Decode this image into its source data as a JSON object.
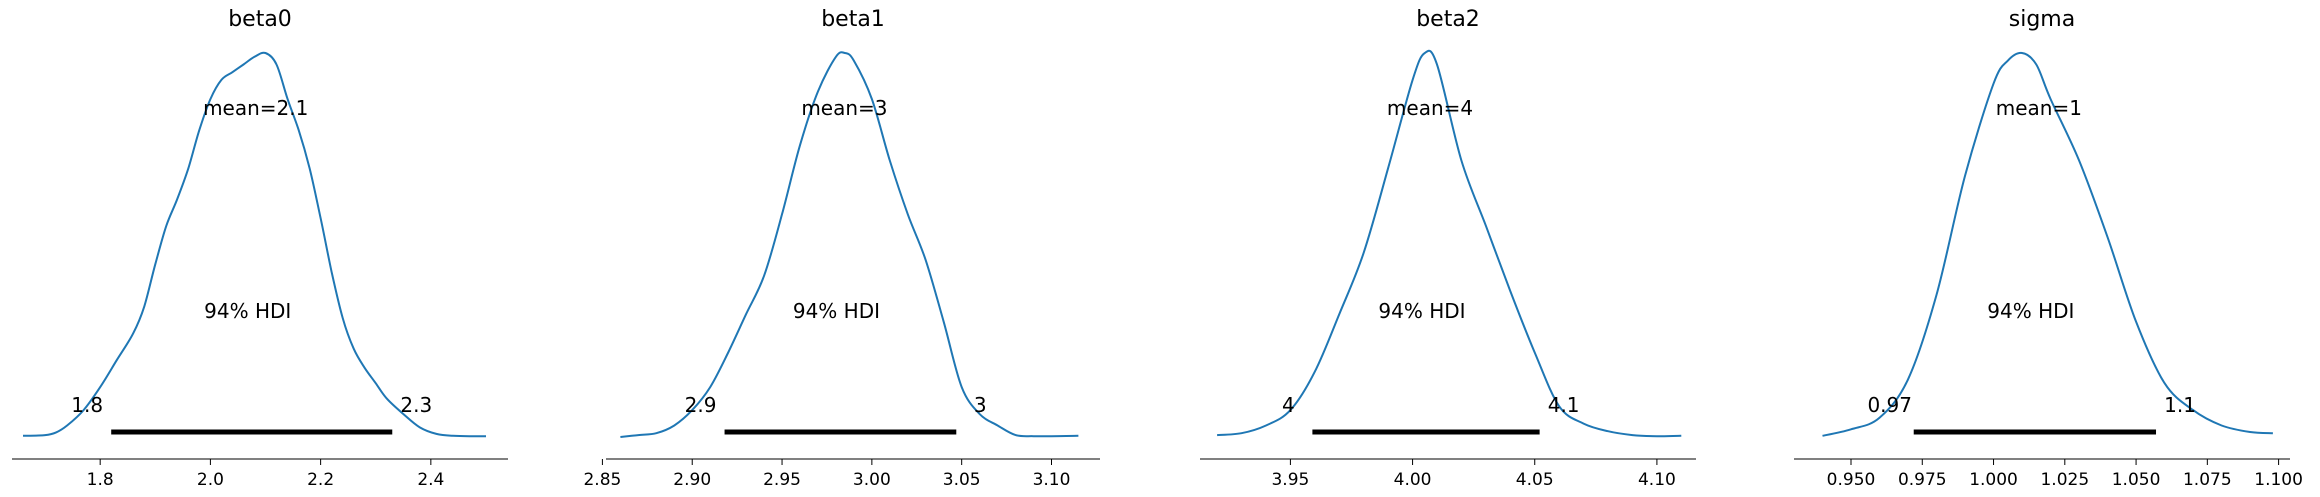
{
  "chart_data": [
    {
      "type": "area",
      "title": "beta0",
      "mean_label": "mean=2.1",
      "hdi_label": "94% HDI",
      "hdi": {
        "low": 1.82,
        "high": 2.33,
        "low_label": "1.8",
        "high_label": "2.3"
      },
      "xlim": [
        1.64,
        2.54
      ],
      "xticks": [
        1.8,
        2.0,
        2.2,
        2.4
      ],
      "xtick_labels": [
        "1.8",
        "2.0",
        "2.2",
        "2.4"
      ],
      "color": "#1f77b4",
      "density": {
        "x": [
          1.66,
          1.7,
          1.72,
          1.74,
          1.77,
          1.8,
          1.83,
          1.86,
          1.88,
          1.9,
          1.92,
          1.94,
          1.96,
          1.98,
          2.0,
          2.02,
          2.04,
          2.06,
          2.08,
          2.1,
          2.12,
          2.14,
          2.16,
          2.18,
          2.2,
          2.22,
          2.24,
          2.26,
          2.28,
          2.3,
          2.32,
          2.35,
          2.38,
          2.41,
          2.44,
          2.47,
          2.5
        ],
        "y": [
          0.003,
          0.005,
          0.012,
          0.03,
          0.07,
          0.13,
          0.2,
          0.27,
          0.34,
          0.45,
          0.55,
          0.62,
          0.7,
          0.8,
          0.88,
          0.93,
          0.95,
          0.97,
          0.99,
          1.0,
          0.97,
          0.88,
          0.8,
          0.7,
          0.57,
          0.43,
          0.31,
          0.23,
          0.18,
          0.14,
          0.1,
          0.06,
          0.025,
          0.008,
          0.003,
          0.002,
          0.002
        ]
      }
    },
    {
      "type": "area",
      "title": "beta1",
      "mean_label": "mean=3",
      "hdi_label": "94% HDI",
      "hdi": {
        "low": 2.918,
        "high": 3.047,
        "low_label": "2.9",
        "high_label": "3"
      },
      "xlim": [
        2.852,
        3.127
      ],
      "xticks": [
        2.85,
        2.9,
        2.95,
        3.0,
        3.05,
        3.1
      ],
      "xtick_labels": [
        "2.85",
        "2.90",
        "2.95",
        "3.00",
        "3.05",
        "3.10"
      ],
      "color": "#1f77b4",
      "density": {
        "x": [
          2.86,
          2.87,
          2.88,
          2.89,
          2.9,
          2.91,
          2.92,
          2.93,
          2.94,
          2.95,
          2.96,
          2.97,
          2.98,
          2.985,
          2.99,
          3.0,
          3.01,
          3.02,
          3.03,
          3.04,
          3.05,
          3.06,
          3.07,
          3.08,
          3.09,
          3.1,
          3.115
        ],
        "y": [
          0.0,
          0.005,
          0.01,
          0.03,
          0.07,
          0.13,
          0.22,
          0.32,
          0.42,
          0.58,
          0.76,
          0.9,
          0.99,
          1.0,
          0.98,
          0.88,
          0.72,
          0.58,
          0.46,
          0.3,
          0.13,
          0.06,
          0.03,
          0.005,
          0.002,
          0.002,
          0.003
        ]
      }
    },
    {
      "type": "area",
      "title": "beta2",
      "mean_label": "mean=4",
      "hdi_label": "94% HDI",
      "hdi": {
        "low": 3.959,
        "high": 4.052,
        "low_label": "4",
        "high_label": "4.1"
      },
      "xlim": [
        3.913,
        4.116
      ],
      "xticks": [
        3.95,
        4.0,
        4.05,
        4.1
      ],
      "xtick_labels": [
        "3.95",
        "4.00",
        "4.05",
        "4.10"
      ],
      "color": "#1f77b4",
      "density": {
        "x": [
          3.92,
          3.93,
          3.94,
          3.95,
          3.96,
          3.97,
          3.98,
          3.99,
          4.0,
          4.005,
          4.01,
          4.02,
          4.03,
          4.04,
          4.05,
          4.06,
          4.07,
          4.08,
          4.09,
          4.1,
          4.11
        ],
        "y": [
          0.005,
          0.01,
          0.03,
          0.07,
          0.17,
          0.32,
          0.48,
          0.7,
          0.93,
          1.0,
          0.97,
          0.72,
          0.55,
          0.38,
          0.22,
          0.08,
          0.035,
          0.015,
          0.005,
          0.002,
          0.003
        ]
      }
    },
    {
      "type": "area",
      "title": "sigma",
      "mean_label": "mean=1",
      "hdi_label": "94% HDI",
      "hdi": {
        "low": 0.972,
        "high": 1.057,
        "low_label": "0.97",
        "high_label": "1.1"
      },
      "xlim": [
        0.93,
        1.104
      ],
      "xticks": [
        0.95,
        0.975,
        1.0,
        1.025,
        1.05,
        1.075,
        1.1
      ],
      "xtick_labels": [
        "0.950",
        "0.975",
        "1.000",
        "1.025",
        "1.050",
        "1.075",
        "1.100"
      ],
      "color": "#1f77b4",
      "density": {
        "x": [
          0.94,
          0.95,
          0.96,
          0.97,
          0.98,
          0.99,
          1.0,
          1.005,
          1.01,
          1.015,
          1.02,
          1.03,
          1.04,
          1.05,
          1.06,
          1.07,
          1.08,
          1.09,
          1.098
        ],
        "y": [
          0.003,
          0.02,
          0.05,
          0.15,
          0.37,
          0.68,
          0.92,
          0.98,
          1.0,
          0.97,
          0.88,
          0.72,
          0.52,
          0.3,
          0.14,
          0.07,
          0.03,
          0.013,
          0.01
        ]
      }
    }
  ]
}
